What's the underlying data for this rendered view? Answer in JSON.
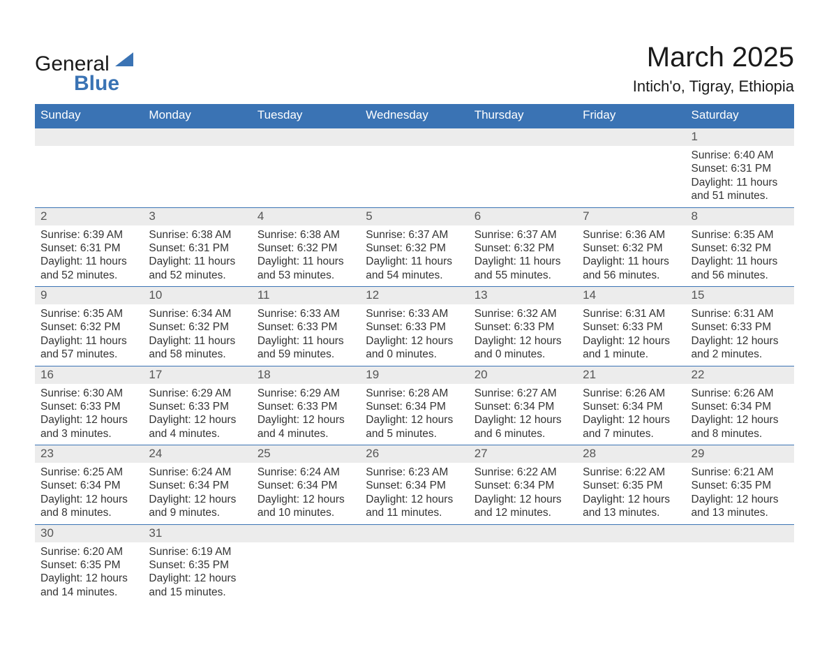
{
  "brand": {
    "name1": "General",
    "name2": "Blue",
    "text_color": "#1a1a1a",
    "accent_color": "#3a73b4"
  },
  "title": "March 2025",
  "location": "Intich'o, Tigray, Ethiopia",
  "calendar": {
    "header_bg": "#3a73b4",
    "header_text_color": "#ffffff",
    "daynum_bg": "#ececec",
    "grid_line_color": "#3a73b4",
    "body_text_color": "#333333",
    "font_family": "Arial",
    "dow_fontsize": 17,
    "daynum_fontsize": 17,
    "body_fontsize": 15.5,
    "days_of_week": [
      "Sunday",
      "Monday",
      "Tuesday",
      "Wednesday",
      "Thursday",
      "Friday",
      "Saturday"
    ],
    "weeks": [
      [
        null,
        null,
        null,
        null,
        null,
        null,
        {
          "n": "1",
          "sunrise": "Sunrise: 6:40 AM",
          "sunset": "Sunset: 6:31 PM",
          "daylight": "Daylight: 11 hours and 51 minutes."
        }
      ],
      [
        {
          "n": "2",
          "sunrise": "Sunrise: 6:39 AM",
          "sunset": "Sunset: 6:31 PM",
          "daylight": "Daylight: 11 hours and 52 minutes."
        },
        {
          "n": "3",
          "sunrise": "Sunrise: 6:38 AM",
          "sunset": "Sunset: 6:31 PM",
          "daylight": "Daylight: 11 hours and 52 minutes."
        },
        {
          "n": "4",
          "sunrise": "Sunrise: 6:38 AM",
          "sunset": "Sunset: 6:32 PM",
          "daylight": "Daylight: 11 hours and 53 minutes."
        },
        {
          "n": "5",
          "sunrise": "Sunrise: 6:37 AM",
          "sunset": "Sunset: 6:32 PM",
          "daylight": "Daylight: 11 hours and 54 minutes."
        },
        {
          "n": "6",
          "sunrise": "Sunrise: 6:37 AM",
          "sunset": "Sunset: 6:32 PM",
          "daylight": "Daylight: 11 hours and 55 minutes."
        },
        {
          "n": "7",
          "sunrise": "Sunrise: 6:36 AM",
          "sunset": "Sunset: 6:32 PM",
          "daylight": "Daylight: 11 hours and 56 minutes."
        },
        {
          "n": "8",
          "sunrise": "Sunrise: 6:35 AM",
          "sunset": "Sunset: 6:32 PM",
          "daylight": "Daylight: 11 hours and 56 minutes."
        }
      ],
      [
        {
          "n": "9",
          "sunrise": "Sunrise: 6:35 AM",
          "sunset": "Sunset: 6:32 PM",
          "daylight": "Daylight: 11 hours and 57 minutes."
        },
        {
          "n": "10",
          "sunrise": "Sunrise: 6:34 AM",
          "sunset": "Sunset: 6:32 PM",
          "daylight": "Daylight: 11 hours and 58 minutes."
        },
        {
          "n": "11",
          "sunrise": "Sunrise: 6:33 AM",
          "sunset": "Sunset: 6:33 PM",
          "daylight": "Daylight: 11 hours and 59 minutes."
        },
        {
          "n": "12",
          "sunrise": "Sunrise: 6:33 AM",
          "sunset": "Sunset: 6:33 PM",
          "daylight": "Daylight: 12 hours and 0 minutes."
        },
        {
          "n": "13",
          "sunrise": "Sunrise: 6:32 AM",
          "sunset": "Sunset: 6:33 PM",
          "daylight": "Daylight: 12 hours and 0 minutes."
        },
        {
          "n": "14",
          "sunrise": "Sunrise: 6:31 AM",
          "sunset": "Sunset: 6:33 PM",
          "daylight": "Daylight: 12 hours and 1 minute."
        },
        {
          "n": "15",
          "sunrise": "Sunrise: 6:31 AM",
          "sunset": "Sunset: 6:33 PM",
          "daylight": "Daylight: 12 hours and 2 minutes."
        }
      ],
      [
        {
          "n": "16",
          "sunrise": "Sunrise: 6:30 AM",
          "sunset": "Sunset: 6:33 PM",
          "daylight": "Daylight: 12 hours and 3 minutes."
        },
        {
          "n": "17",
          "sunrise": "Sunrise: 6:29 AM",
          "sunset": "Sunset: 6:33 PM",
          "daylight": "Daylight: 12 hours and 4 minutes."
        },
        {
          "n": "18",
          "sunrise": "Sunrise: 6:29 AM",
          "sunset": "Sunset: 6:33 PM",
          "daylight": "Daylight: 12 hours and 4 minutes."
        },
        {
          "n": "19",
          "sunrise": "Sunrise: 6:28 AM",
          "sunset": "Sunset: 6:34 PM",
          "daylight": "Daylight: 12 hours and 5 minutes."
        },
        {
          "n": "20",
          "sunrise": "Sunrise: 6:27 AM",
          "sunset": "Sunset: 6:34 PM",
          "daylight": "Daylight: 12 hours and 6 minutes."
        },
        {
          "n": "21",
          "sunrise": "Sunrise: 6:26 AM",
          "sunset": "Sunset: 6:34 PM",
          "daylight": "Daylight: 12 hours and 7 minutes."
        },
        {
          "n": "22",
          "sunrise": "Sunrise: 6:26 AM",
          "sunset": "Sunset: 6:34 PM",
          "daylight": "Daylight: 12 hours and 8 minutes."
        }
      ],
      [
        {
          "n": "23",
          "sunrise": "Sunrise: 6:25 AM",
          "sunset": "Sunset: 6:34 PM",
          "daylight": "Daylight: 12 hours and 8 minutes."
        },
        {
          "n": "24",
          "sunrise": "Sunrise: 6:24 AM",
          "sunset": "Sunset: 6:34 PM",
          "daylight": "Daylight: 12 hours and 9 minutes."
        },
        {
          "n": "25",
          "sunrise": "Sunrise: 6:24 AM",
          "sunset": "Sunset: 6:34 PM",
          "daylight": "Daylight: 12 hours and 10 minutes."
        },
        {
          "n": "26",
          "sunrise": "Sunrise: 6:23 AM",
          "sunset": "Sunset: 6:34 PM",
          "daylight": "Daylight: 12 hours and 11 minutes."
        },
        {
          "n": "27",
          "sunrise": "Sunrise: 6:22 AM",
          "sunset": "Sunset: 6:34 PM",
          "daylight": "Daylight: 12 hours and 12 minutes."
        },
        {
          "n": "28",
          "sunrise": "Sunrise: 6:22 AM",
          "sunset": "Sunset: 6:35 PM",
          "daylight": "Daylight: 12 hours and 13 minutes."
        },
        {
          "n": "29",
          "sunrise": "Sunrise: 6:21 AM",
          "sunset": "Sunset: 6:35 PM",
          "daylight": "Daylight: 12 hours and 13 minutes."
        }
      ],
      [
        {
          "n": "30",
          "sunrise": "Sunrise: 6:20 AM",
          "sunset": "Sunset: 6:35 PM",
          "daylight": "Daylight: 12 hours and 14 minutes."
        },
        {
          "n": "31",
          "sunrise": "Sunrise: 6:19 AM",
          "sunset": "Sunset: 6:35 PM",
          "daylight": "Daylight: 12 hours and 15 minutes."
        },
        null,
        null,
        null,
        null,
        null
      ]
    ]
  }
}
